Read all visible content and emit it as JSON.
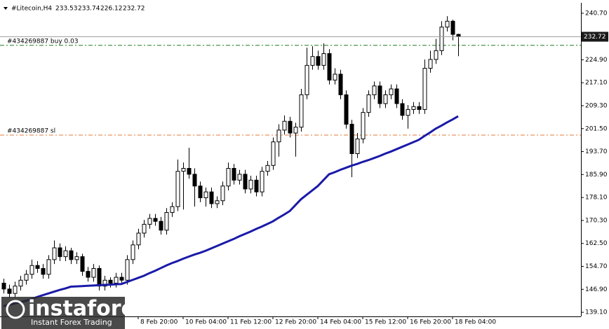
{
  "chart_data": {
    "type": "candlestick",
    "title": "#Litecoin,H4",
    "categories": [
      null,
      null,
      null,
      null,
      null,
      null,
      null,
      null,
      null,
      null,
      null,
      null,
      null,
      null,
      null,
      null,
      null,
      null,
      null,
      null,
      null,
      null,
      null,
      null,
      "8 Feb 20:00",
      null,
      null,
      null,
      null,
      null,
      null,
      null,
      "10 Feb 04:00",
      null,
      null,
      null,
      null,
      null,
      null,
      null,
      "11 Feb 12:00",
      null,
      null,
      null,
      null,
      null,
      null,
      null,
      "12 Feb 20:00",
      null,
      null,
      null,
      null,
      null,
      null,
      null,
      "14 Feb 04:00",
      null,
      null,
      null,
      null,
      null,
      null,
      null,
      "15 Feb 12:00",
      null,
      null,
      null,
      null,
      null,
      null,
      null,
      "16 Feb 20:00",
      null,
      null,
      null,
      null,
      null,
      null,
      null,
      "18 Feb 04:00",
      null
    ],
    "open": [
      149,
      147,
      145.5,
      148,
      150,
      152,
      155,
      154,
      152,
      157,
      161,
      158,
      160,
      157,
      158,
      153,
      151,
      154,
      148,
      150,
      149,
      151,
      150,
      157,
      162,
      166,
      169,
      171,
      170,
      167,
      173,
      175,
      187,
      188,
      186,
      182,
      178,
      180,
      176,
      177,
      182,
      188,
      184,
      186,
      181,
      184,
      180,
      187,
      189,
      197,
      201,
      204,
      200,
      202,
      213,
      223,
      226,
      223,
      227,
      218,
      220,
      213,
      203,
      193,
      198,
      207,
      213,
      216,
      210,
      213,
      215,
      210,
      206,
      208,
      209,
      208,
      222,
      225,
      228,
      236,
      238,
      233.53
    ],
    "high": [
      150.5,
      148.5,
      149.5,
      151.5,
      153.5,
      157,
      156.5,
      155.5,
      158.5,
      163.5,
      162.5,
      161.5,
      161,
      159.5,
      159,
      154.5,
      155.5,
      155,
      151.5,
      151,
      152.5,
      152.5,
      158.5,
      163.5,
      167.5,
      170.5,
      172.5,
      172.5,
      171.5,
      174.5,
      176.5,
      191,
      190,
      195,
      188,
      183.5,
      181.5,
      181.5,
      178.5,
      183.5,
      190,
      189.5,
      187.5,
      187.5,
      185.5,
      185.5,
      188.5,
      190.5,
      198.5,
      203,
      206,
      205.5,
      203.5,
      215,
      229,
      229.5,
      228,
      230.5,
      228.5,
      222,
      221.5,
      214.5,
      204.5,
      200,
      208.5,
      214.5,
      217.5,
      217.5,
      214.5,
      216.5,
      216.5,
      211.5,
      209.5,
      210.5,
      210.5,
      225,
      228,
      232,
      238,
      239.7,
      238.5,
      233.74
    ],
    "low": [
      145.5,
      144,
      144,
      146.5,
      148.5,
      150.5,
      152.5,
      150.5,
      150.5,
      155.5,
      156.5,
      156.5,
      155.5,
      155.5,
      151.5,
      149.5,
      149.5,
      146.5,
      146.5,
      147.5,
      147.5,
      148.5,
      148.5,
      155.5,
      160.5,
      164.5,
      167.5,
      168.5,
      165.5,
      165.5,
      171.5,
      173.5,
      174,
      184.5,
      175,
      176.5,
      175,
      174.5,
      174.5,
      175.5,
      180.5,
      182.5,
      182.5,
      179.5,
      179.5,
      178.5,
      178.5,
      185.5,
      187.5,
      192,
      199.5,
      198.5,
      192,
      200.5,
      211.5,
      221.5,
      221.5,
      221.5,
      216.5,
      216.5,
      211.5,
      201.5,
      185,
      191.5,
      196.5,
      205.5,
      211.5,
      208.5,
      208.5,
      211.5,
      208.5,
      204.5,
      201.5,
      206.5,
      206.5,
      206.5,
      220.5,
      223.5,
      226.5,
      234.5,
      231.5,
      226.12
    ],
    "close": [
      147,
      145.5,
      148,
      150,
      152,
      155,
      154,
      152,
      157,
      161,
      158,
      160,
      157,
      158,
      153,
      151,
      154,
      148,
      150,
      149,
      151,
      150,
      157,
      162,
      166,
      169,
      171,
      170,
      167,
      173,
      175,
      187,
      188,
      186,
      182,
      178,
      180,
      176,
      177,
      182,
      188,
      184,
      186,
      181,
      184,
      180,
      187,
      189,
      197,
      201,
      204,
      200,
      202,
      213,
      223,
      226,
      223,
      227,
      218,
      220,
      213,
      203,
      193,
      198,
      207,
      213,
      216,
      210,
      213,
      215,
      210,
      206,
      208,
      209,
      208,
      222,
      225,
      228,
      236,
      238,
      233.53,
      232.72
    ],
    "ma": [
      141.2,
      141.6,
      142.1,
      142.5,
      143,
      143.6,
      144.3,
      144.9,
      145.5,
      146.1,
      146.7,
      147.2,
      147.8,
      147.9,
      148,
      148.1,
      148.2,
      148.3,
      148.4,
      148.5,
      148.6,
      148.7,
      149.4,
      150.1,
      150.8,
      151.5,
      152.4,
      153.2,
      154.1,
      155,
      155.8,
      156.5,
      157.3,
      158,
      158.7,
      159.3,
      160,
      160.8,
      161.6,
      162.4,
      163.2,
      164,
      164.9,
      165.7,
      166.5,
      167.4,
      168.2,
      169.1,
      170,
      171.2,
      172.3,
      173.5,
      175.5,
      177.5,
      179,
      180.5,
      182,
      184,
      186,
      186.7,
      187.5,
      188.2,
      188.9,
      189.5,
      190.2,
      190.8,
      191.5,
      192.2,
      193,
      193.7,
      194.5,
      195.3,
      196.1,
      196.9,
      197.7,
      199,
      200.2,
      201.5,
      202.5,
      203.6,
      204.6,
      205.7
    ],
    "ma_color": "#1a1aa8",
    "up_color": "#ffffff",
    "down_color": "#000000",
    "orders": [
      {
        "label": "#434269887 buy 0.03",
        "value": 229.8,
        "color": "#1e7b1e"
      },
      {
        "label": "#434269887 sl",
        "value": 199.3,
        "color": "#e07b39"
      }
    ],
    "ylim": [
      137.7,
      243.3
    ],
    "yticks": [
      {
        "value": 240.7,
        "label": "240.70"
      },
      {
        "value": 224.9,
        "label": "224.90"
      },
      {
        "value": 217.1,
        "label": "217.10"
      },
      {
        "value": 209.3,
        "label": "209.30"
      },
      {
        "value": 201.5,
        "label": "201.50"
      },
      {
        "value": 193.7,
        "label": "193.70"
      },
      {
        "value": 185.9,
        "label": "185.90"
      },
      {
        "value": 178.1,
        "label": "178.10"
      },
      {
        "value": 170.3,
        "label": "170.30"
      },
      {
        "value": 162.5,
        "label": "162.50"
      },
      {
        "value": 154.7,
        "label": "154.70"
      },
      {
        "value": 146.9,
        "label": "146.90"
      },
      {
        "value": 139.1,
        "label": "139.10"
      }
    ]
  },
  "logo": {
    "name": "instaforex",
    "tagline": "Instant Forex Trading"
  }
}
